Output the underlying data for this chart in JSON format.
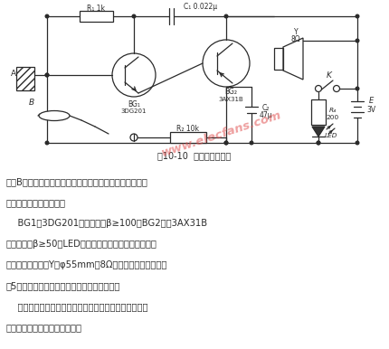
{
  "bg_color": "#ffffff",
  "lc": "#2a2a2a",
  "title": "图10-10  穴位探测器线路",
  "watermark": "www.elecfans.com",
  "wm_color": "#e05050",
  "body_lines": [
    "探针B可借用万用表的表棒。但需要用细砂纸将表棒尖端磨",
    "圆，避免戳伤病人皮肤。",
    "    BG1为3DG201硅三极管，β≥100；BG2可用3AX31B",
    "锗三极管，β≥50。LED可用红色发光二极管，在这里起",
    "电源指示灯作用。Y为φ55mm，8Ω电动扬声器。电源用两",
    "节5号电池。阻容元件参数见图，无特殊要求。",
    "    该线路不需调试就能正常工作。它也非常适宜实习医生",
    "在自己身上作寻找穴位练习用。"
  ]
}
